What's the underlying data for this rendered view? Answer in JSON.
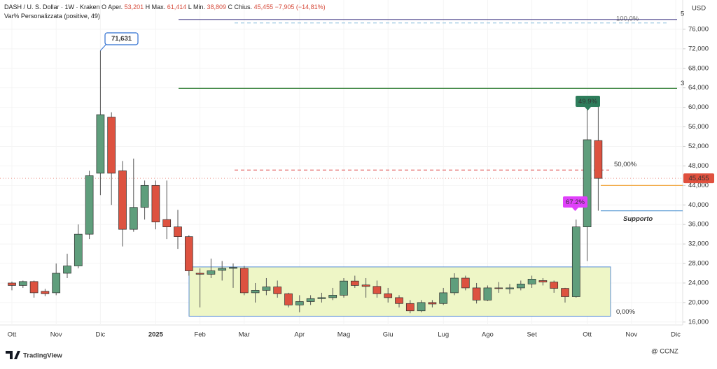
{
  "header": {
    "symbol": "DASH / U. S. Dollar · 1W · Kraken",
    "ohlc": [
      {
        "key": "O",
        "label": "Aper.",
        "value": "53,201"
      },
      {
        "key": "H",
        "label": "Max.",
        "value": "61,414"
      },
      {
        "key": "L",
        "label": "Min.",
        "value": "38,809"
      },
      {
        "key": "C",
        "label": "Chius.",
        "value": "45,455"
      }
    ],
    "change": "−7,905 (−14,81%)",
    "indicator": "Var% Personalizzata (positive, 49)"
  },
  "chart_data": {
    "type": "candlestick",
    "currency": "USD",
    "categories": [
      "Ott",
      null,
      null,
      null,
      "Nov",
      null,
      null,
      null,
      "Dic",
      null,
      null,
      null,
      null,
      "2025",
      null,
      null,
      null,
      "Feb",
      null,
      null,
      null,
      "Mar",
      null,
      null,
      null,
      null,
      "Apr",
      null,
      null,
      null,
      "Mag",
      null,
      null,
      null,
      "Giu",
      null,
      null,
      null,
      null,
      "Lug",
      null,
      null,
      null,
      "Ago",
      null,
      null,
      null,
      "Set",
      null,
      null,
      null,
      null,
      "Ott",
      null,
      null,
      null,
      "Nov",
      null,
      null,
      null,
      "Dic"
    ],
    "series": {
      "open": [
        24000,
        23500,
        24300,
        22300,
        22000,
        26000,
        27500,
        34000,
        46500,
        58000,
        47000,
        35000,
        39500,
        44000,
        37000,
        35500,
        33500,
        26000,
        25800,
        26600,
        27000,
        27000,
        22000,
        22500,
        23200,
        21800,
        19500,
        20200,
        20800,
        21000,
        21500,
        24400,
        23600,
        23300,
        21800,
        21000,
        19800,
        18300,
        20000,
        19800,
        22000,
        25000,
        23000,
        20500,
        23000,
        22800,
        23000,
        23800,
        24500,
        24200,
        22900,
        21200,
        35500,
        53201,
        null,
        null,
        null,
        null,
        null,
        null,
        null
      ],
      "high": [
        24300,
        24500,
        24500,
        22800,
        28000,
        30000,
        36000,
        47000,
        71631,
        59000,
        49000,
        49500,
        45000,
        45000,
        45000,
        39000,
        33800,
        27000,
        29000,
        28500,
        28000,
        27500,
        24000,
        25000,
        24500,
        22000,
        21500,
        21500,
        22000,
        23000,
        25000,
        25500,
        25000,
        24500,
        23000,
        21500,
        20500,
        20500,
        20500,
        23000,
        26000,
        25500,
        24000,
        23500,
        24200,
        23800,
        24500,
        25500,
        25000,
        24500,
        23000,
        37000,
        61000,
        61414,
        null,
        null,
        null,
        null,
        null,
        null,
        null
      ],
      "low": [
        22500,
        23000,
        21000,
        21300,
        21500,
        25000,
        27000,
        33000,
        42000,
        40000,
        31500,
        34500,
        37000,
        35000,
        33000,
        31000,
        25500,
        19000,
        25000,
        24500,
        23000,
        21500,
        20000,
        21500,
        21000,
        19000,
        18000,
        19500,
        20000,
        20500,
        21000,
        23000,
        21000,
        21000,
        20000,
        19000,
        17800,
        18000,
        19000,
        19500,
        21500,
        22500,
        19800,
        20300,
        22000,
        21800,
        22500,
        23000,
        23500,
        22000,
        20000,
        21000,
        28500,
        38809,
        null,
        null,
        null,
        null,
        null,
        null,
        null
      ],
      "close": [
        23500,
        24300,
        22000,
        21800,
        26000,
        27500,
        34000,
        46000,
        58500,
        46500,
        35000,
        39500,
        44000,
        36500,
        35500,
        33500,
        26500,
        25800,
        26500,
        27000,
        27200,
        22000,
        22500,
        23200,
        21800,
        19500,
        20200,
        20800,
        21000,
        21500,
        24400,
        23500,
        23300,
        21800,
        21000,
        19800,
        18300,
        20000,
        19700,
        22000,
        25000,
        23000,
        20500,
        23000,
        22900,
        23000,
        23800,
        24800,
        24200,
        22900,
        21200,
        35500,
        53360,
        45455,
        null,
        null,
        null,
        null,
        null,
        null,
        null
      ]
    },
    "up_color": "#5f9e7c",
    "down_color": "#dd5240",
    "ylim": [
      15400,
      82000
    ],
    "yticks": [
      {
        "value": 16000,
        "label": "16,000"
      },
      {
        "value": 20000,
        "label": "20,000"
      },
      {
        "value": 24000,
        "label": "24,000"
      },
      {
        "value": 28000,
        "label": "28,000"
      },
      {
        "value": 32000,
        "label": "32,000"
      },
      {
        "value": 36000,
        "label": "36,000"
      },
      {
        "value": 40000,
        "label": "40,000"
      },
      {
        "value": 44000,
        "label": "44,000"
      },
      {
        "value": 48000,
        "label": "48,000"
      },
      {
        "value": 52000,
        "label": "52,000"
      },
      {
        "value": 56000,
        "label": "56,000"
      },
      {
        "value": 60000,
        "label": "60,000"
      },
      {
        "value": 64000,
        "label": "64,000"
      },
      {
        "value": 68000,
        "label": "68,000"
      },
      {
        "value": 72000,
        "label": "72,000"
      },
      {
        "value": 76000,
        "label": "76,000"
      }
    ],
    "grid": true,
    "levels": [
      {
        "value": 78000,
        "color": "#3b3380",
        "style": "solid",
        "label": "5"
      },
      {
        "value": 77300,
        "color": "#9cc9e4",
        "style": "dashed",
        "label": "100,0%"
      },
      {
        "value": 63900,
        "color": "#2e7d32",
        "style": "solid",
        "label": "3"
      },
      {
        "value": 47150,
        "color": "#e05555",
        "style": "dashed",
        "label": "50,00%"
      },
      {
        "value": 44000,
        "color": "#f0a030",
        "style": "solid"
      },
      {
        "value": 38800,
        "color": "#5b9bd5",
        "style": "solid",
        "label": "Supporto"
      }
    ],
    "zone": {
      "top": 27300,
      "bottom": 17200,
      "fill": "#eef6c6",
      "stroke": "#5b8fd6",
      "label": "0,00%"
    },
    "annotations": [
      {
        "text": "71,631",
        "value": 71631,
        "color": "#2f6fd0"
      },
      {
        "text": "49.9%",
        "color": "#2e7d5b"
      },
      {
        "text": "67.2%",
        "color": "#e040fb"
      }
    ],
    "last_price": {
      "value": 45455,
      "label": "45,455",
      "color": "#e0503e"
    }
  },
  "footer": {
    "logo": "TradingView",
    "watermark": "@ CCNZ"
  }
}
